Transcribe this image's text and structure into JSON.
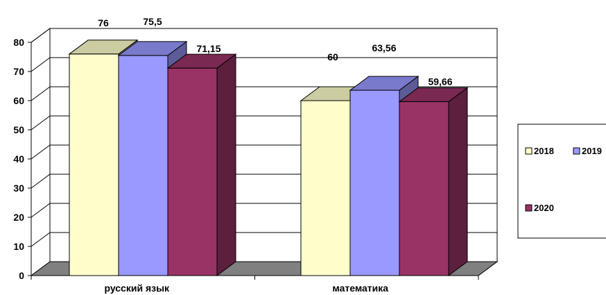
{
  "chart_data": {
    "type": "bar",
    "style": "3d-clustered-column",
    "categories": [
      "русский язык",
      "математика"
    ],
    "series": [
      {
        "name": "2018",
        "values": [
          76,
          60
        ],
        "labels": [
          "76",
          "60"
        ],
        "color": "#FFFFCC"
      },
      {
        "name": "2019",
        "values": [
          75.5,
          63.56
        ],
        "labels": [
          "75,5",
          "63,56"
        ],
        "color": "#9999FF"
      },
      {
        "name": "2020",
        "values": [
          71.15,
          59.66
        ],
        "labels": [
          "71,15",
          "59,66"
        ],
        "color": "#993366"
      }
    ],
    "ylim": [
      0,
      80
    ],
    "yticks": [
      0,
      10,
      20,
      30,
      40,
      50,
      60,
      70,
      80
    ],
    "grid": true,
    "legend": "right",
    "floor_color": "#808080"
  }
}
